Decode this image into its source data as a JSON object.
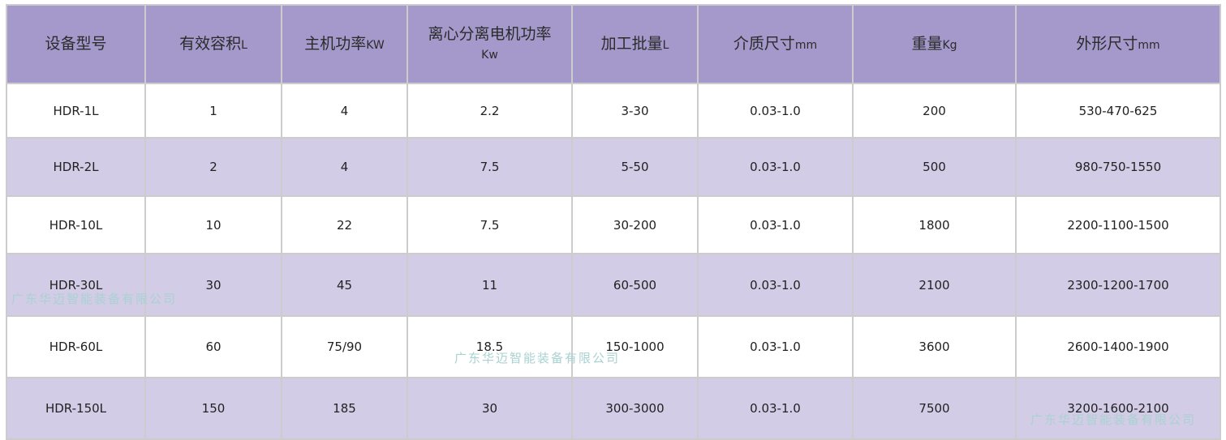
{
  "table": {
    "headers": [
      {
        "label": "设备型号",
        "unit": ""
      },
      {
        "label": "有效容积",
        "unit": "L"
      },
      {
        "label": "主机功率",
        "unit": "KW"
      },
      {
        "label": "离心分离电机功率",
        "unit": "Kw"
      },
      {
        "label": "加工批量",
        "unit": "L"
      },
      {
        "label": "介质尺寸",
        "unit": "mm"
      },
      {
        "label": "重量",
        "unit": "Kg"
      },
      {
        "label": "外形尺寸",
        "unit": "mm"
      }
    ],
    "rows": [
      [
        "HDR-1L",
        "1",
        "4",
        "2.2",
        "3-30",
        "0.03-1.0",
        "200",
        "530-470-625"
      ],
      [
        "HDR-2L",
        "2",
        "4",
        "7.5",
        "5-50",
        "0.03-1.0",
        "500",
        "980-750-1550"
      ],
      [
        "HDR-10L",
        "10",
        "22",
        "7.5",
        "30-200",
        "0.03-1.0",
        "1800",
        "2200-1100-1500"
      ],
      [
        "HDR-30L",
        "30",
        "45",
        "11",
        "60-500",
        "0.03-1.0",
        "2100",
        "2300-1200-1700"
      ],
      [
        "HDR-60L",
        "60",
        "75/90",
        "18.5",
        "150-1000",
        "0.03-1.0",
        "3600",
        "2600-1400-1900"
      ],
      [
        "HDR-150L",
        "150",
        "185",
        "30",
        "300-3000",
        "0.03-1.0",
        "7500",
        "3200-1600-2100"
      ]
    ]
  },
  "watermark": "广东华迈智能装备有限公司",
  "colors": {
    "header": "#a599cb",
    "alt_row": "#d2cce6",
    "border": "#cccccc"
  }
}
